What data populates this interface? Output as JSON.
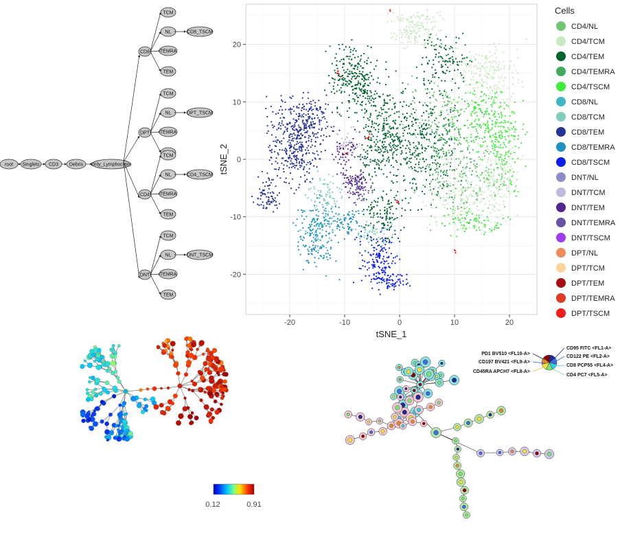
{
  "gating_tree": {
    "chain": [
      "root",
      "Singlets",
      "CD3",
      "Debris",
      "Only_Lymphocytes"
    ],
    "groups": [
      {
        "name": "CD8",
        "children": [
          "TCM",
          "NL",
          "TEMRA",
          "TEM"
        ],
        "tscm": "CD8_TSCM"
      },
      {
        "name": "DPT",
        "children": [
          "TCM",
          "NL",
          "TEMRA",
          "TEM"
        ],
        "tscm": "DPT_TSCM"
      },
      {
        "name": "CD4",
        "children": [
          "TCM",
          "NL",
          "TEMRA",
          "TEM"
        ],
        "tscm": "CD4_TSCM"
      },
      {
        "name": "DNT",
        "children": [
          "TCM",
          "NL",
          "TEMRA",
          "TEM"
        ],
        "tscm": "DNT_TSCM"
      }
    ]
  },
  "chart_data": {
    "type": "scatter",
    "xlabel": "tSNE_1",
    "ylabel": "tSNE_2",
    "xlim": [
      -28,
      25
    ],
    "ylim": [
      -27,
      27
    ],
    "xticks": [
      -20,
      -10,
      0,
      10,
      20
    ],
    "yticks": [
      -20,
      -10,
      0,
      10,
      20
    ],
    "grid": true,
    "legend_title": "Cells",
    "legend_position": "right",
    "series": [
      {
        "name": "CD4/NL",
        "color": "#74c476"
      },
      {
        "name": "CD4/TCM",
        "color": "#c7e9c0"
      },
      {
        "name": "CD4/TEM",
        "color": "#00632e"
      },
      {
        "name": "CD4/TEMRA",
        "color": "#41ab5d"
      },
      {
        "name": "CD4/TSCM",
        "color": "#3ded3a"
      },
      {
        "name": "CD8/NL",
        "color": "#41b6c4"
      },
      {
        "name": "CD8/TCM",
        "color": "#7fcdbb"
      },
      {
        "name": "CD8/TEM",
        "color": "#253494"
      },
      {
        "name": "CD8/TEMRA",
        "color": "#1d91c0"
      },
      {
        "name": "CD8/TSCM",
        "color": "#0c1ee8"
      },
      {
        "name": "DNT/NL",
        "color": "#8c8cc8"
      },
      {
        "name": "DNT/TCM",
        "color": "#bcbddc"
      },
      {
        "name": "DNT/TEM",
        "color": "#54278f"
      },
      {
        "name": "DNT/TEMRA",
        "color": "#6a51a3"
      },
      {
        "name": "DNT/TSCM",
        "color": "#9e3ef0"
      },
      {
        "name": "DPT/NL",
        "color": "#f28b5a"
      },
      {
        "name": "DPT/TCM",
        "color": "#fdd49e"
      },
      {
        "name": "DPT/TEM",
        "color": "#a50f15"
      },
      {
        "name": "DPT/TEMRA",
        "color": "#de3a24"
      },
      {
        "name": "DPT/TSCM",
        "color": "#f21d1d"
      }
    ]
  },
  "colorbar": {
    "min_label": "0.12",
    "max_label": "0.91"
  },
  "marker_legend": {
    "left": [
      "PD1 BV510 <FL10-A>",
      "CD197 BV421 <FL9-A>",
      "CD45RA APCH7 <FL8-A>"
    ],
    "right": [
      "CD95 FITC <FL1-A>",
      "CD122 PE <FL2-A>",
      "CD8 PCP55 <FL4-A>",
      "CD4 PC7 <FL5-A>"
    ],
    "slice_colors": [
      "#1f2a8c",
      "#3b6fe0",
      "#2fd0e8",
      "#7ee07a",
      "#f0e040",
      "#e08a30",
      "#8b0000"
    ]
  }
}
